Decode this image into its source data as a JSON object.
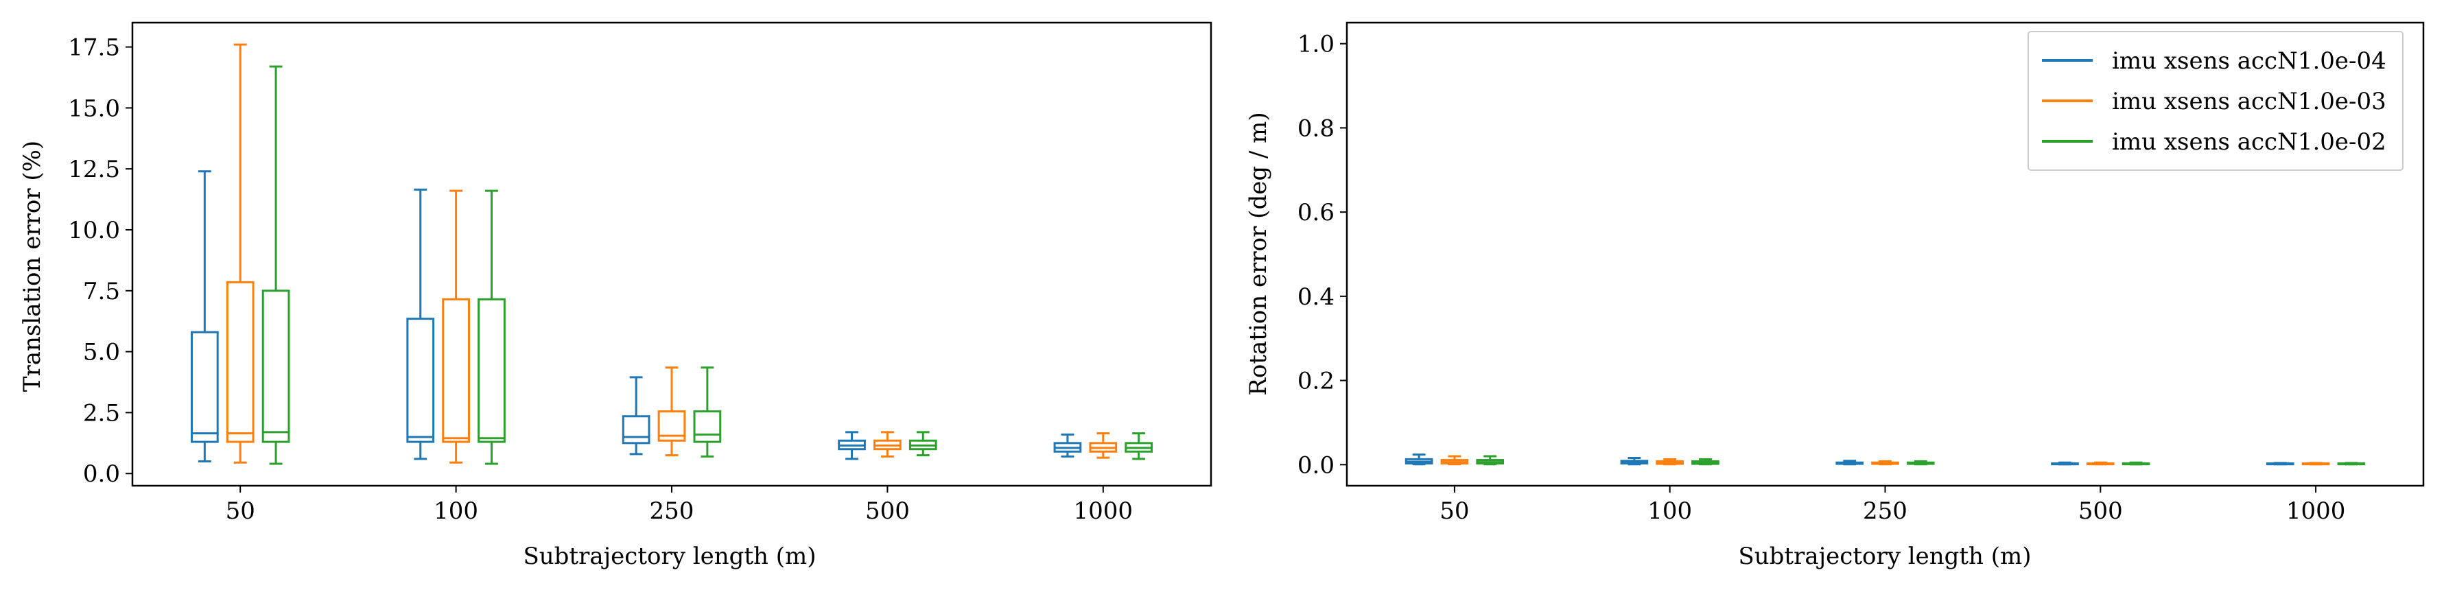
{
  "chart_data": [
    {
      "type": "box",
      "xlabel": "Subtrajectory length (m)",
      "ylabel": "Translation error (%)",
      "categories": [
        "50",
        "100",
        "250",
        "500",
        "1000"
      ],
      "ylim": [
        -0.5,
        18.5
      ],
      "yticks": [
        0.0,
        2.5,
        5.0,
        7.5,
        10.0,
        12.5,
        15.0,
        17.5
      ],
      "ytick_labels": [
        "0.0",
        "2.5",
        "5.0",
        "7.5",
        "10.0",
        "12.5",
        "15.0",
        "17.5"
      ],
      "grid": false,
      "series": [
        {
          "name": "imu xsens accN1.0e-04",
          "color": "#1f77b4",
          "boxes": [
            {
              "whislo": 0.5,
              "q1": 1.3,
              "med": 1.65,
              "q3": 5.8,
              "whishi": 12.4
            },
            {
              "whislo": 0.6,
              "q1": 1.3,
              "med": 1.5,
              "q3": 6.35,
              "whishi": 11.65
            },
            {
              "whislo": 0.8,
              "q1": 1.25,
              "med": 1.5,
              "q3": 2.35,
              "whishi": 3.95
            },
            {
              "whislo": 0.6,
              "q1": 1.0,
              "med": 1.15,
              "q3": 1.35,
              "whishi": 1.7
            },
            {
              "whislo": 0.7,
              "q1": 0.9,
              "med": 1.05,
              "q3": 1.25,
              "whishi": 1.6
            }
          ]
        },
        {
          "name": "imu xsens accN1.0e-03",
          "color": "#ff7f0e",
          "boxes": [
            {
              "whislo": 0.45,
              "q1": 1.3,
              "med": 1.65,
              "q3": 7.85,
              "whishi": 17.6
            },
            {
              "whislo": 0.45,
              "q1": 1.3,
              "med": 1.45,
              "q3": 7.15,
              "whishi": 11.6
            },
            {
              "whislo": 0.75,
              "q1": 1.35,
              "med": 1.55,
              "q3": 2.55,
              "whishi": 4.35
            },
            {
              "whislo": 0.7,
              "q1": 1.0,
              "med": 1.15,
              "q3": 1.35,
              "whishi": 1.7
            },
            {
              "whislo": 0.65,
              "q1": 0.9,
              "med": 1.05,
              "q3": 1.25,
              "whishi": 1.65
            }
          ]
        },
        {
          "name": "imu xsens accN1.0e-02",
          "color": "#2ca02c",
          "boxes": [
            {
              "whislo": 0.4,
              "q1": 1.3,
              "med": 1.7,
              "q3": 7.5,
              "whishi": 16.7
            },
            {
              "whislo": 0.4,
              "q1": 1.3,
              "med": 1.45,
              "q3": 7.15,
              "whishi": 11.6
            },
            {
              "whislo": 0.7,
              "q1": 1.3,
              "med": 1.6,
              "q3": 2.55,
              "whishi": 4.35
            },
            {
              "whislo": 0.75,
              "q1": 1.0,
              "med": 1.15,
              "q3": 1.35,
              "whishi": 1.7
            },
            {
              "whislo": 0.6,
              "q1": 0.9,
              "med": 1.05,
              "q3": 1.25,
              "whishi": 1.65
            }
          ]
        }
      ]
    },
    {
      "type": "box",
      "xlabel": "Subtrajectory length (m)",
      "ylabel": "Rotation error (deg / m)",
      "categories": [
        "50",
        "100",
        "250",
        "500",
        "1000"
      ],
      "ylim": [
        -0.05,
        1.05
      ],
      "yticks": [
        0.0,
        0.2,
        0.4,
        0.6,
        0.8,
        1.0
      ],
      "ytick_labels": [
        "0.0",
        "0.2",
        "0.4",
        "0.6",
        "0.8",
        "1.0"
      ],
      "grid": false,
      "legend_position": "top-right",
      "series": [
        {
          "name": "imu xsens accN1.0e-04",
          "color": "#1f77b4",
          "boxes": [
            {
              "whislo": 0.001,
              "q1": 0.003,
              "med": 0.007,
              "q3": 0.013,
              "whishi": 0.024
            },
            {
              "whislo": 0.001,
              "q1": 0.003,
              "med": 0.005,
              "q3": 0.009,
              "whishi": 0.016
            },
            {
              "whislo": 0.001,
              "q1": 0.002,
              "med": 0.003,
              "q3": 0.005,
              "whishi": 0.009
            },
            {
              "whislo": 0.001,
              "q1": 0.001,
              "med": 0.002,
              "q3": 0.003,
              "whishi": 0.005
            },
            {
              "whislo": 0.001,
              "q1": 0.001,
              "med": 0.002,
              "q3": 0.003,
              "whishi": 0.004
            }
          ]
        },
        {
          "name": "imu xsens accN1.0e-03",
          "color": "#ff7f0e",
          "boxes": [
            {
              "whislo": 0.001,
              "q1": 0.003,
              "med": 0.006,
              "q3": 0.011,
              "whishi": 0.02
            },
            {
              "whislo": 0.001,
              "q1": 0.002,
              "med": 0.004,
              "q3": 0.008,
              "whishi": 0.013
            },
            {
              "whislo": 0.001,
              "q1": 0.002,
              "med": 0.003,
              "q3": 0.005,
              "whishi": 0.008
            },
            {
              "whislo": 0.001,
              "q1": 0.001,
              "med": 0.002,
              "q3": 0.003,
              "whishi": 0.005
            },
            {
              "whislo": 0.001,
              "q1": 0.001,
              "med": 0.002,
              "q3": 0.003,
              "whishi": 0.004
            }
          ]
        },
        {
          "name": "imu xsens accN1.0e-02",
          "color": "#2ca02c",
          "boxes": [
            {
              "whislo": 0.001,
              "q1": 0.003,
              "med": 0.006,
              "q3": 0.011,
              "whishi": 0.02
            },
            {
              "whislo": 0.001,
              "q1": 0.002,
              "med": 0.004,
              "q3": 0.008,
              "whishi": 0.013
            },
            {
              "whislo": 0.001,
              "q1": 0.002,
              "med": 0.003,
              "q3": 0.005,
              "whishi": 0.008
            },
            {
              "whislo": 0.001,
              "q1": 0.001,
              "med": 0.002,
              "q3": 0.003,
              "whishi": 0.005
            },
            {
              "whislo": 0.001,
              "q1": 0.001,
              "med": 0.002,
              "q3": 0.003,
              "whishi": 0.004
            }
          ]
        }
      ]
    }
  ]
}
